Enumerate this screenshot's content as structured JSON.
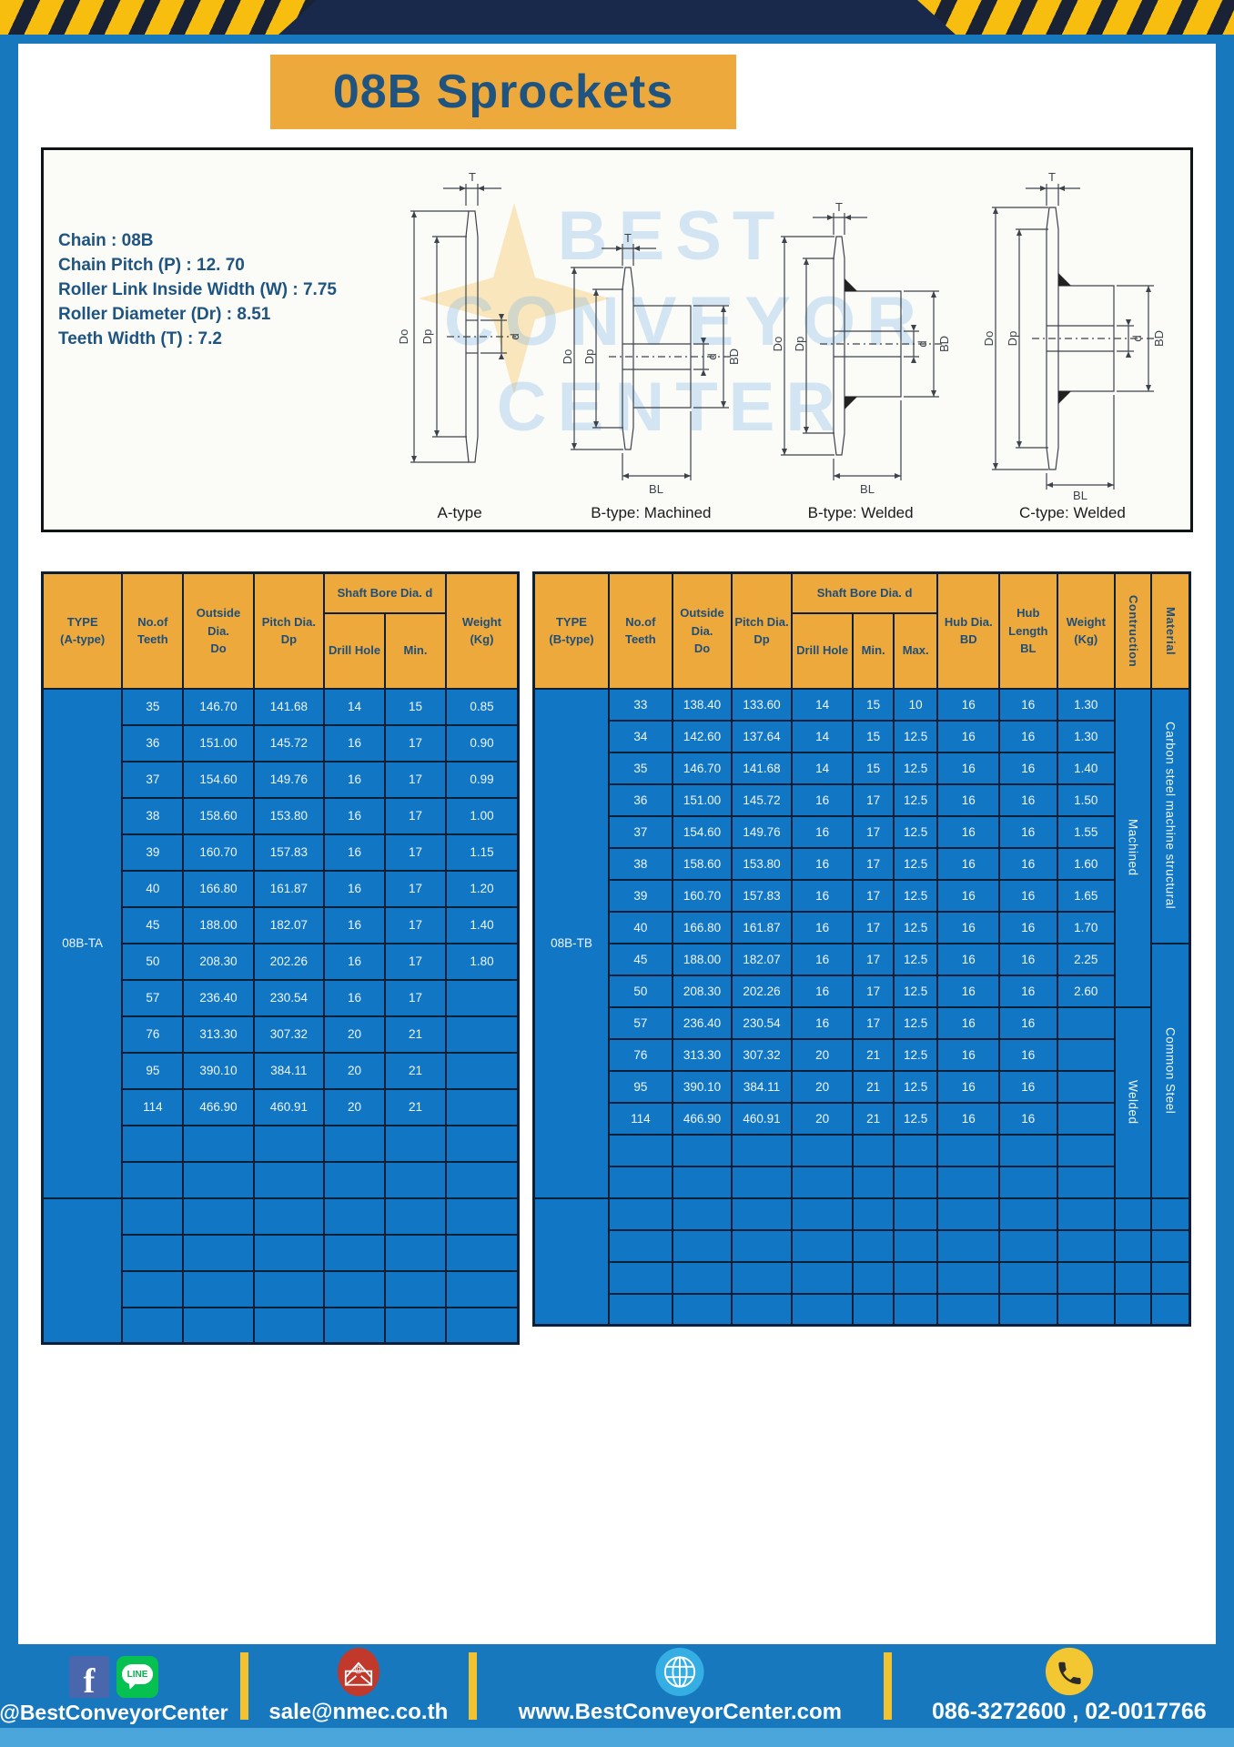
{
  "header": {
    "title": "08B Sprockets"
  },
  "specs": {
    "lines": [
      "Chain  : 08B",
      "Chain Pitch (P)  :  12. 70",
      "Roller Link Inside Width (W)  :  7.75",
      "Roller Diameter (Dr)  :  8.51",
      "Teeth Width (T)  :  7.2"
    ]
  },
  "diagram": {
    "watermark_lines": [
      "BEST",
      "CONVEYOR",
      "CENTER"
    ],
    "variant_labels": [
      "A-type",
      "B-type: Machined",
      "B-type: Welded",
      "C-type: Welded"
    ],
    "dim": {
      "t": "T",
      "outside": "Do",
      "pitch": "Dp",
      "bore": "d",
      "hub": "BD",
      "hub_len": "BL"
    }
  },
  "table_a": {
    "type_label": "08B-TA",
    "headers": {
      "type": "TYPE\n(A-type)",
      "teeth": "No.of\nTeeth",
      "outside": "Outside\nDia.\nDo",
      "pitch": "Pitch Dia.\nDp",
      "shaft_bore": "Shaft Bore Dia. d",
      "drill": "Drill Hole",
      "min": "Min.",
      "weight": "Weight\n(Kg)"
    },
    "rows": [
      [
        "35",
        "146.70",
        "141.68",
        "14",
        "15",
        "0.85"
      ],
      [
        "36",
        "151.00",
        "145.72",
        "16",
        "17",
        "0.90"
      ],
      [
        "37",
        "154.60",
        "149.76",
        "16",
        "17",
        "0.99"
      ],
      [
        "38",
        "158.60",
        "153.80",
        "16",
        "17",
        "1.00"
      ],
      [
        "39",
        "160.70",
        "157.83",
        "16",
        "17",
        "1.15"
      ],
      [
        "40",
        "166.80",
        "161.87",
        "16",
        "17",
        "1.20"
      ],
      [
        "45",
        "188.00",
        "182.07",
        "16",
        "17",
        "1.40"
      ],
      [
        "50",
        "208.30",
        "202.26",
        "16",
        "17",
        "1.80"
      ],
      [
        "57",
        "236.40",
        "230.54",
        "16",
        "17",
        ""
      ],
      [
        "76",
        "313.30",
        "307.32",
        "20",
        "21",
        ""
      ],
      [
        "95",
        "390.10",
        "384.11",
        "20",
        "21",
        ""
      ],
      [
        "114",
        "466.90",
        "460.91",
        "20",
        "21",
        ""
      ]
    ],
    "extra_rows_in_group": 2,
    "empty_group_rows": 4
  },
  "table_b": {
    "type_label": "08B-TB",
    "headers": {
      "type": "TYPE\n(B-type)",
      "teeth": "No.of\nTeeth",
      "outside": "Outside\nDia.\nDo",
      "pitch": "Pitch Dia.\nDp",
      "shaft_bore": "Shaft Bore Dia. d",
      "drill": "Drill Hole",
      "min": "Min.",
      "max": "Max.",
      "hub_dia": "Hub Dia.\nBD",
      "hub_len": "Hub\nLength\nBL",
      "weight": "Weight\n(Kg)",
      "construction": "Contruction",
      "material": "Material"
    },
    "rows": [
      [
        "33",
        "138.40",
        "133.60",
        "14",
        "15",
        "10",
        "16",
        "16",
        "1.30"
      ],
      [
        "34",
        "142.60",
        "137.64",
        "14",
        "15",
        "12.5",
        "16",
        "16",
        "1.30"
      ],
      [
        "35",
        "146.70",
        "141.68",
        "14",
        "15",
        "12.5",
        "16",
        "16",
        "1.40"
      ],
      [
        "36",
        "151.00",
        "145.72",
        "16",
        "17",
        "12.5",
        "16",
        "16",
        "1.50"
      ],
      [
        "37",
        "154.60",
        "149.76",
        "16",
        "17",
        "12.5",
        "16",
        "16",
        "1.55"
      ],
      [
        "38",
        "158.60",
        "153.80",
        "16",
        "17",
        "12.5",
        "16",
        "16",
        "1.60"
      ],
      [
        "39",
        "160.70",
        "157.83",
        "16",
        "17",
        "12.5",
        "16",
        "16",
        "1.65"
      ],
      [
        "40",
        "166.80",
        "161.87",
        "16",
        "17",
        "12.5",
        "16",
        "16",
        "1.70"
      ],
      [
        "45",
        "188.00",
        "182.07",
        "16",
        "17",
        "12.5",
        "16",
        "16",
        "2.25"
      ],
      [
        "50",
        "208.30",
        "202.26",
        "16",
        "17",
        "12.5",
        "16",
        "16",
        "2.60"
      ],
      [
        "57",
        "236.40",
        "230.54",
        "16",
        "17",
        "12.5",
        "16",
        "16",
        ""
      ],
      [
        "76",
        "313.30",
        "307.32",
        "20",
        "21",
        "12.5",
        "16",
        "16",
        ""
      ],
      [
        "95",
        "390.10",
        "384.11",
        "20",
        "21",
        "12.5",
        "16",
        "16",
        ""
      ],
      [
        "114",
        "466.90",
        "460.91",
        "20",
        "21",
        "12.5",
        "16",
        "16",
        ""
      ]
    ],
    "construction_groups": [
      {
        "label": "Machined",
        "rows": 10
      },
      {
        "label": "Welded",
        "rows": 6
      }
    ],
    "material_groups": [
      {
        "label": "Carbon steel  machine structural",
        "rows": 8
      },
      {
        "label": "Common Steel",
        "rows": 8
      }
    ],
    "extra_rows_in_group": 2,
    "empty_group_rows": 4
  },
  "footer": {
    "social": "@BestConveyorCenter",
    "line_badge": "LINE",
    "facebook_letter": "f",
    "email": "sale@nmec.co.th",
    "website": "www.BestConveyorCenter.com",
    "phone": "086-3272600 , 02-0017766"
  },
  "colors": {
    "frame_blue": "#1878BE",
    "cell_blue": "#1177C5",
    "header_yellow": "#EEA93C",
    "hazard_yellow": "#F7BE0F",
    "navy": "#18294B",
    "grid_navy": "#0B2038",
    "title_text": "#1F5480"
  }
}
